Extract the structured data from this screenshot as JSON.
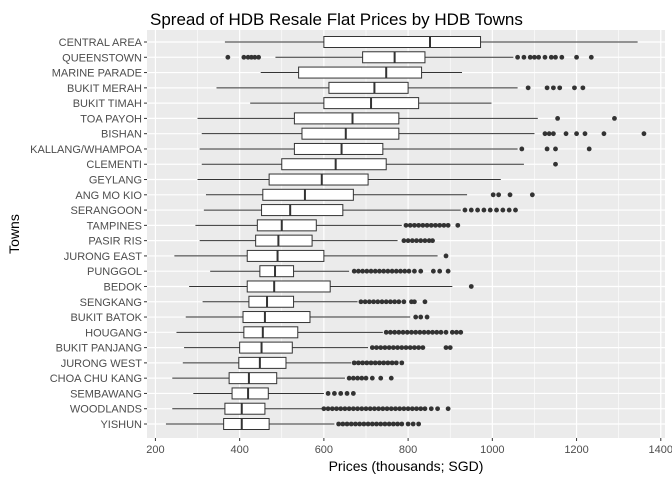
{
  "chart_data": {
    "type": "boxplot",
    "orientation": "horizontal",
    "title": "Spread of HDB Resale Flat Prices by HDB Towns",
    "xlabel": "Prices (thousands; SGD)",
    "ylabel": "Towns",
    "xlim": [
      180,
      1410
    ],
    "x_ticks": [
      200,
      400,
      600,
      800,
      1000,
      1200,
      1400
    ],
    "grid": true,
    "colors": {
      "panel": "#ebebeb",
      "grid_major": "#ffffff",
      "box_fill": "#ffffff",
      "box_stroke": "#333333",
      "outlier": "#333333"
    },
    "categories": [
      "CENTRAL AREA",
      "QUEENSTOWN",
      "MARINE PARADE",
      "BUKIT MERAH",
      "BUKIT TIMAH",
      "TOA PAYOH",
      "BISHAN",
      "KALLANG/WHAMPOA",
      "CLEMENTI",
      "GEYLANG",
      "ANG MO KIO",
      "SERANGOON",
      "TAMPINES",
      "PASIR RIS",
      "JURONG EAST",
      "PUNGGOL",
      "BEDOK",
      "SENGKANG",
      "BUKIT BATOK",
      "HOUGANG",
      "BUKIT PANJANG",
      "JURONG WEST",
      "CHOA CHU KANG",
      "SEMBAWANG",
      "WOODLANDS",
      "YISHUN"
    ],
    "boxes": [
      {
        "town": "CENTRAL AREA",
        "min": 365,
        "q1": 600,
        "median": 852,
        "q3": 972,
        "max": 1345,
        "outliers": []
      },
      {
        "town": "QUEENSTOWN",
        "min": 485,
        "q1": 692,
        "median": 768,
        "q3": 840,
        "max": 1050,
        "outliers": [
          372,
          410,
          420,
          428,
          436,
          445,
          1060,
          1075,
          1090,
          1100,
          1110,
          1125,
          1140,
          1150,
          1165,
          1200,
          1235
        ]
      },
      {
        "town": "MARINE PARADE",
        "min": 450,
        "q1": 540,
        "median": 748,
        "q3": 832,
        "max": 928,
        "outliers": []
      },
      {
        "town": "BUKIT MERAH",
        "min": 345,
        "q1": 612,
        "median": 720,
        "q3": 800,
        "max": 1060,
        "outliers": [
          1085,
          1130,
          1145,
          1160,
          1195,
          1215
        ]
      },
      {
        "town": "BUKIT TIMAH",
        "min": 425,
        "q1": 600,
        "median": 712,
        "q3": 825,
        "max": 998,
        "outliers": []
      },
      {
        "town": "TOA PAYOH",
        "min": 300,
        "q1": 530,
        "median": 668,
        "q3": 778,
        "max": 1108,
        "outliers": [
          1155,
          1290
        ]
      },
      {
        "town": "BISHAN",
        "min": 310,
        "q1": 548,
        "median": 652,
        "q3": 778,
        "max": 1100,
        "outliers": [
          1125,
          1135,
          1145,
          1175,
          1200,
          1220,
          1265,
          1360
        ]
      },
      {
        "town": "KALLANG/WHAMPOA",
        "min": 305,
        "q1": 530,
        "median": 642,
        "q3": 740,
        "max": 1060,
        "outliers": [
          1070,
          1130,
          1150,
          1230
        ]
      },
      {
        "town": "CLEMENTI",
        "min": 310,
        "q1": 500,
        "median": 628,
        "q3": 748,
        "max": 1075,
        "outliers": [
          1150
        ]
      },
      {
        "town": "GEYLANG",
        "min": 300,
        "q1": 470,
        "median": 595,
        "q3": 705,
        "max": 1020,
        "outliers": []
      },
      {
        "town": "ANG MO KIO",
        "min": 320,
        "q1": 455,
        "median": 555,
        "q3": 670,
        "max": 940,
        "outliers": [
          1002,
          1015,
          1042,
          1095
        ]
      },
      {
        "town": "SERANGOON",
        "min": 315,
        "q1": 452,
        "median": 520,
        "q3": 645,
        "max": 925,
        "outliers": [
          935,
          950,
          965,
          980,
          995,
          1010,
          1025,
          1040,
          1055
        ]
      },
      {
        "town": "TAMPINES",
        "min": 295,
        "q1": 442,
        "median": 500,
        "q3": 582,
        "max": 785,
        "outliers": [
          795,
          805,
          815,
          825,
          835,
          845,
          855,
          865,
          875,
          885,
          895,
          918
        ]
      },
      {
        "town": "PASIR RIS",
        "min": 305,
        "q1": 438,
        "median": 492,
        "q3": 572,
        "max": 775,
        "outliers": [
          790,
          800,
          810,
          820,
          830,
          840,
          850,
          858
        ]
      },
      {
        "town": "JURONG EAST",
        "min": 245,
        "q1": 418,
        "median": 490,
        "q3": 600,
        "max": 870,
        "outliers": [
          890
        ]
      },
      {
        "town": "PUNGGOL",
        "min": 330,
        "q1": 448,
        "median": 484,
        "q3": 528,
        "max": 660,
        "outliers": [
          672,
          682,
          692,
          702,
          712,
          722,
          732,
          742,
          752,
          762,
          772,
          782,
          792,
          802,
          815,
          830,
          860,
          875,
          895
        ]
      },
      {
        "town": "BEDOK",
        "min": 280,
        "q1": 418,
        "median": 482,
        "q3": 615,
        "max": 905,
        "outliers": [
          950
        ]
      },
      {
        "town": "SENGKANG",
        "min": 312,
        "q1": 422,
        "median": 465,
        "q3": 528,
        "max": 680,
        "outliers": [
          688,
          698,
          708,
          718,
          728,
          738,
          748,
          758,
          768,
          778,
          790,
          808,
          815,
          840
        ]
      },
      {
        "town": "BUKIT BATOK",
        "min": 272,
        "q1": 408,
        "median": 460,
        "q3": 567,
        "max": 805,
        "outliers": [
          818,
          830,
          845
        ]
      },
      {
        "town": "HOUGANG",
        "min": 250,
        "q1": 410,
        "median": 455,
        "q3": 538,
        "max": 740,
        "outliers": [
          748,
          758,
          768,
          778,
          788,
          798,
          808,
          818,
          828,
          838,
          848,
          858,
          868,
          878,
          890,
          905,
          915,
          925
        ]
      },
      {
        "town": "BUKIT PANJANG",
        "min": 268,
        "q1": 400,
        "median": 452,
        "q3": 525,
        "max": 705,
        "outliers": [
          715,
          725,
          735,
          745,
          755,
          765,
          775,
          785,
          795,
          805,
          815,
          825,
          835,
          890,
          900
        ]
      },
      {
        "town": "JURONG WEST",
        "min": 265,
        "q1": 398,
        "median": 448,
        "q3": 510,
        "max": 665,
        "outliers": [
          672,
          682,
          692,
          702,
          712,
          722,
          732,
          742,
          752,
          762,
          772,
          785
        ]
      },
      {
        "town": "CHOA CHU KANG",
        "min": 240,
        "q1": 375,
        "median": 422,
        "q3": 488,
        "max": 650,
        "outliers": [
          660,
          670,
          680,
          690,
          700,
          715,
          735,
          760
        ]
      },
      {
        "town": "SEMBAWANG",
        "min": 290,
        "q1": 382,
        "median": 420,
        "q3": 468,
        "max": 600,
        "outliers": [
          610,
          625,
          640,
          655,
          670
        ]
      },
      {
        "town": "WOODLANDS",
        "min": 240,
        "q1": 365,
        "median": 405,
        "q3": 460,
        "max": 595,
        "outliers": [
          600,
          610,
          620,
          630,
          640,
          650,
          660,
          670,
          680,
          690,
          700,
          710,
          720,
          730,
          740,
          750,
          760,
          770,
          780,
          790,
          800,
          810,
          820,
          830,
          840,
          855,
          870,
          895
        ]
      },
      {
        "town": "YISHUN",
        "min": 225,
        "q1": 362,
        "median": 405,
        "q3": 470,
        "max": 625,
        "outliers": [
          635,
          645,
          655,
          665,
          675,
          685,
          695,
          705,
          715,
          725,
          735,
          745,
          755,
          765,
          775,
          785,
          800,
          812,
          825
        ]
      }
    ]
  }
}
